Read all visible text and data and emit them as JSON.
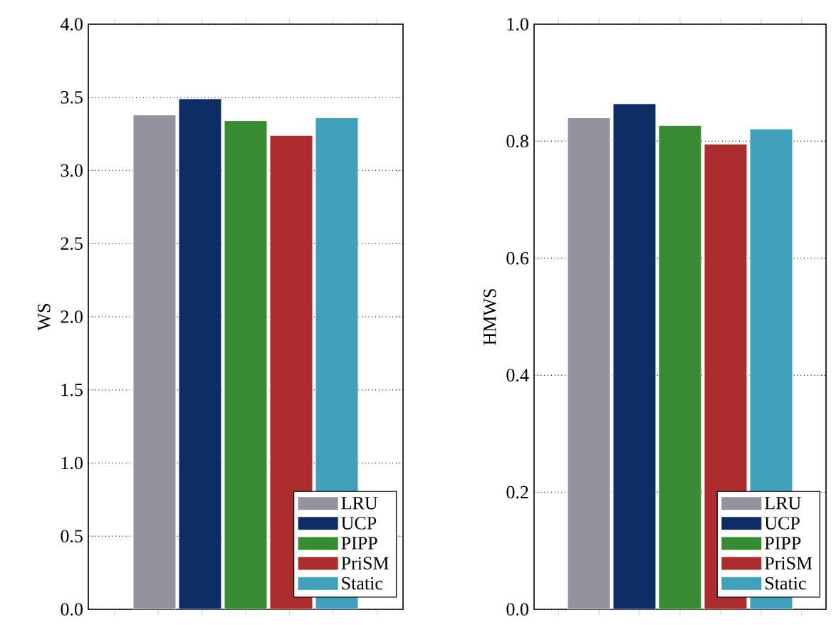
{
  "chart_data": [
    {
      "type": "bar",
      "ylabel": "WS",
      "categories": [
        null
      ],
      "ylim": [
        0,
        4
      ],
      "yticks": [
        {
          "value": 0,
          "label": "0.0"
        },
        {
          "value": 0.5,
          "label": "0.5"
        },
        {
          "value": 1,
          "label": "1.0"
        },
        {
          "value": 1.5,
          "label": "1.5"
        },
        {
          "value": 2,
          "label": "2.0"
        },
        {
          "value": 2.5,
          "label": "2.5"
        },
        {
          "value": 3,
          "label": "3.0"
        },
        {
          "value": 3.5,
          "label": "3.5"
        },
        {
          "value": 4,
          "label": "4.0"
        }
      ],
      "grid": "y",
      "legend": "bottom right",
      "series": [
        {
          "name": "LRU",
          "color": "#94939d",
          "values": [
            3.38
          ]
        },
        {
          "name": "UCP",
          "color": "#0e2d64",
          "values": [
            3.49
          ]
        },
        {
          "name": "PIPP",
          "color": "#388b33",
          "values": [
            3.34
          ]
        },
        {
          "name": "PriSM",
          "color": "#ad2c2e",
          "values": [
            3.24
          ]
        },
        {
          "name": "Static",
          "color": "#41a0bc",
          "values": [
            3.36
          ]
        }
      ]
    },
    {
      "type": "bar",
      "ylabel": "HMWS",
      "categories": [
        null
      ],
      "ylim": [
        0,
        1
      ],
      "yticks": [
        {
          "value": 0,
          "label": "0.0"
        },
        {
          "value": 0.2,
          "label": "0.2"
        },
        {
          "value": 0.4,
          "label": "0.4"
        },
        {
          "value": 0.6,
          "label": "0.6"
        },
        {
          "value": 0.8,
          "label": "0.8"
        },
        {
          "value": 1,
          "label": "1.0"
        }
      ],
      "grid": "y",
      "legend": "bottom right",
      "series": [
        {
          "name": "LRU",
          "color": "#94939d",
          "values": [
            0.84
          ]
        },
        {
          "name": "UCP",
          "color": "#0e2d64",
          "values": [
            0.864
          ]
        },
        {
          "name": "PIPP",
          "color": "#388b33",
          "values": [
            0.827
          ]
        },
        {
          "name": "PriSM",
          "color": "#ad2c2e",
          "values": [
            0.795
          ]
        },
        {
          "name": "Static",
          "color": "#41a0bc",
          "values": [
            0.821
          ]
        }
      ]
    }
  ]
}
